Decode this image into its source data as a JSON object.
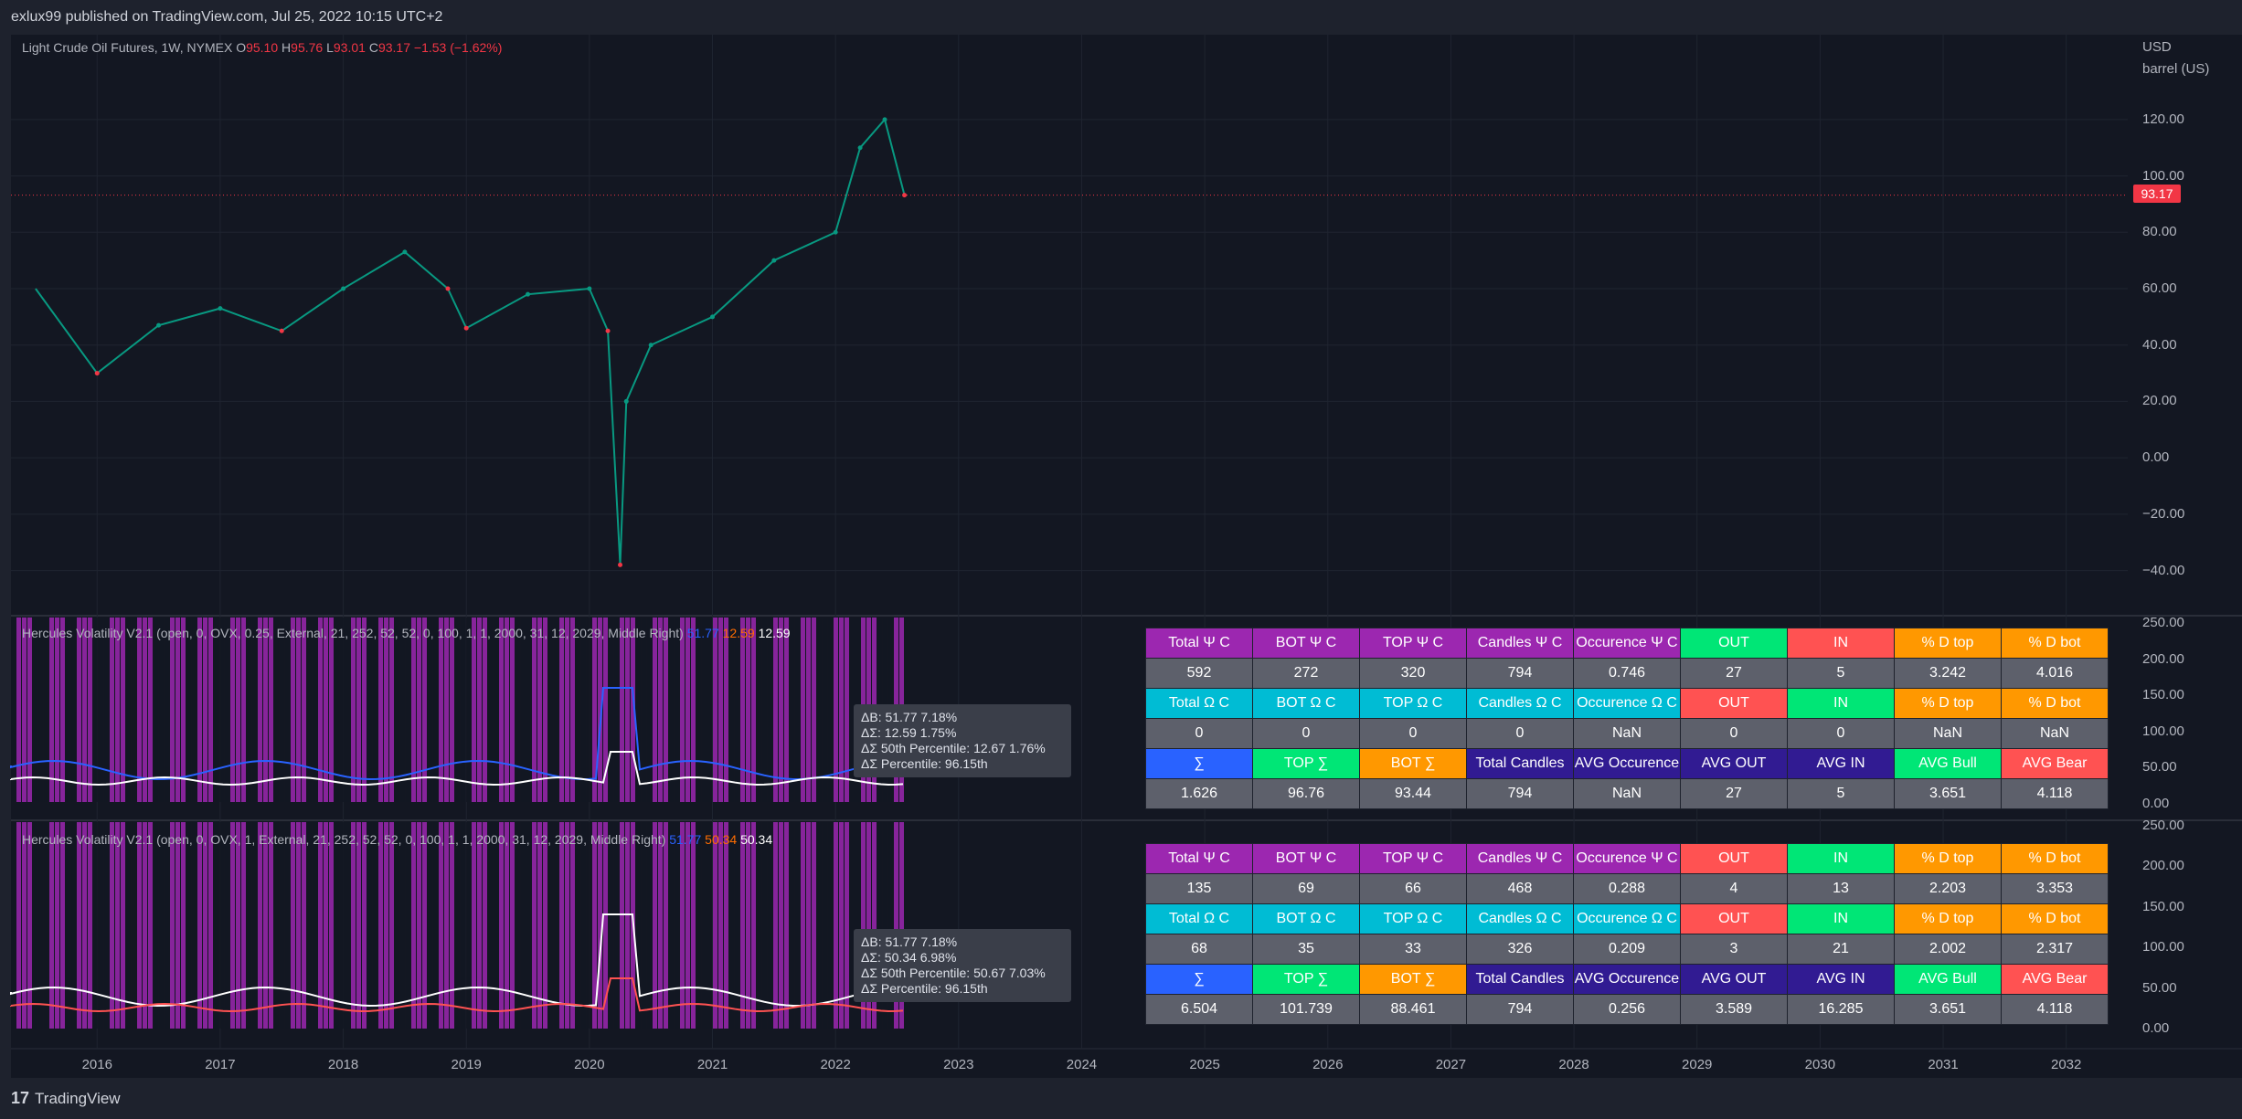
{
  "header": {
    "published": "exlux99 published on TradingView.com, Jul 25, 2022 10:15 UTC+2"
  },
  "footer": {
    "brand": "TradingView",
    "logo_icon": "tradingview-logo-icon"
  },
  "main_legend": {
    "symbol": "Light Crude Oil Futures, 1W, NYMEX",
    "o_label": "O",
    "o": "95.10",
    "h_label": "H",
    "h": "95.76",
    "l_label": "L",
    "l": "93.01",
    "c_label": "C",
    "c": "93.17",
    "change": "−1.53 (−1.62%)"
  },
  "price_axis": {
    "currency": "USD",
    "unit": "barrel (US)",
    "ticks": [
      "120.00",
      "100.00",
      "80.00",
      "60.00",
      "40.00",
      "20.00",
      "0.00",
      "−20.00",
      "−40.00"
    ],
    "last_price": "93.17"
  },
  "indicator1": {
    "title": "Hercules Volatility V2.1 (open, 0, OVX, 0.25, External, 21, 252, 52, 52, 0, 100, 1, 1, 2000, 31, 12, 2029, Middle Right)",
    "v1": "51.77",
    "v2": "12.59",
    "v3": "12.59",
    "ticks": [
      "250.00",
      "200.00",
      "150.00",
      "100.00",
      "50.00",
      "0.00"
    ],
    "tooltip": [
      "ΔB: 51.77  7.18%",
      "ΔΣ: 12.59  1.75%",
      "ΔΣ 50th Percentile: 12.67  1.76%",
      "ΔΣ Percentile: 96.15th"
    ]
  },
  "indicator2": {
    "title": "Hercules Volatility V2.1 (open, 0, OVX, 1, External, 21, 252, 52, 52, 0, 100, 1, 1, 2000, 31, 12, 2029, Middle Right)",
    "v1": "51.77",
    "v2": "50.34",
    "v3": "50.34",
    "ticks": [
      "250.00",
      "200.00",
      "150.00",
      "100.00",
      "50.00",
      "0.00"
    ],
    "tooltip": [
      "ΔB: 51.77  7.18%",
      "ΔΣ: 50.34  6.98%",
      "ΔΣ 50th Percentile: 50.67  7.03%",
      "ΔΣ Percentile: 96.15th"
    ]
  },
  "time_axis": [
    "2016",
    "2017",
    "2018",
    "2019",
    "2020",
    "2021",
    "2022",
    "2023",
    "2024",
    "2025",
    "2026",
    "2027",
    "2028",
    "2029",
    "2030",
    "2031",
    "2032"
  ],
  "table1": {
    "rows": [
      [
        "Total Ψ C",
        "BOT Ψ C",
        "TOP Ψ C",
        "Candles Ψ C",
        "Occurence Ψ C",
        "OUT",
        "IN",
        "% D top",
        "% D bot"
      ],
      [
        "592",
        "272",
        "320",
        "794",
        "0.746",
        "27",
        "5",
        "3.242",
        "4.016"
      ],
      [
        "Total Ω C",
        "BOT Ω C",
        "TOP Ω C",
        "Candles Ω C",
        "Occurence Ω C",
        "OUT",
        "IN",
        "% D top",
        "% D bot"
      ],
      [
        "0",
        "0",
        "0",
        "0",
        "NaN",
        "0",
        "0",
        "NaN",
        "NaN"
      ],
      [
        "∑",
        "TOP ∑",
        "BOT ∑",
        "Total Candles",
        "AVG Occurence",
        "AVG OUT",
        "AVG IN",
        "AVG Bull",
        "AVG Bear"
      ],
      [
        "1.626",
        "96.76",
        "93.44",
        "794",
        "NaN",
        "27",
        "5",
        "3.651",
        "4.118"
      ]
    ],
    "colors": [
      [
        "#9c27b0",
        "#9c27b0",
        "#9c27b0",
        "#9c27b0",
        "#9c27b0",
        "#00e676",
        "#ff5252",
        "#ff9800",
        "#ff9800"
      ],
      [
        "#5d606b",
        "#5d606b",
        "#5d606b",
        "#5d606b",
        "#5d606b",
        "#5d606b",
        "#5d606b",
        "#5d606b",
        "#5d606b"
      ],
      [
        "#00bcd4",
        "#00bcd4",
        "#00bcd4",
        "#00bcd4",
        "#00bcd4",
        "#ff5252",
        "#00e676",
        "#ff9800",
        "#ff9800"
      ],
      [
        "#5d606b",
        "#5d606b",
        "#5d606b",
        "#5d606b",
        "#5d606b",
        "#5d606b",
        "#5d606b",
        "#5d606b",
        "#5d606b"
      ],
      [
        "#2962ff",
        "#00e676",
        "#ff9800",
        "#311b92",
        "#311b92",
        "#311b92",
        "#311b92",
        "#00e676",
        "#ff5252"
      ],
      [
        "#5d606b",
        "#5d606b",
        "#5d606b",
        "#5d606b",
        "#5d606b",
        "#5d606b",
        "#5d606b",
        "#5d606b",
        "#5d606b"
      ]
    ]
  },
  "table2": {
    "rows": [
      [
        "Total Ψ C",
        "BOT Ψ C",
        "TOP Ψ C",
        "Candles Ψ C",
        "Occurence Ψ C",
        "OUT",
        "IN",
        "% D top",
        "% D bot"
      ],
      [
        "135",
        "69",
        "66",
        "468",
        "0.288",
        "4",
        "13",
        "2.203",
        "3.353"
      ],
      [
        "Total Ω C",
        "BOT Ω C",
        "TOP Ω C",
        "Candles Ω C",
        "Occurence Ω C",
        "OUT",
        "IN",
        "% D top",
        "% D bot"
      ],
      [
        "68",
        "35",
        "33",
        "326",
        "0.209",
        "3",
        "21",
        "2.002",
        "2.317"
      ],
      [
        "∑",
        "TOP ∑",
        "BOT ∑",
        "Total Candles",
        "AVG Occurence",
        "AVG OUT",
        "AVG IN",
        "AVG Bull",
        "AVG Bear"
      ],
      [
        "6.504",
        "101.739",
        "88.461",
        "794",
        "0.256",
        "3.589",
        "16.285",
        "3.651",
        "4.118"
      ]
    ],
    "colors": [
      [
        "#9c27b0",
        "#9c27b0",
        "#9c27b0",
        "#9c27b0",
        "#9c27b0",
        "#ff5252",
        "#00e676",
        "#ff9800",
        "#ff9800"
      ],
      [
        "#5d606b",
        "#5d606b",
        "#5d606b",
        "#5d606b",
        "#5d606b",
        "#5d606b",
        "#5d606b",
        "#5d606b",
        "#5d606b"
      ],
      [
        "#00bcd4",
        "#00bcd4",
        "#00bcd4",
        "#00bcd4",
        "#00bcd4",
        "#ff5252",
        "#00e676",
        "#ff9800",
        "#ff9800"
      ],
      [
        "#5d606b",
        "#5d606b",
        "#5d606b",
        "#5d606b",
        "#5d606b",
        "#5d606b",
        "#5d606b",
        "#5d606b",
        "#5d606b"
      ],
      [
        "#2962ff",
        "#00e676",
        "#ff9800",
        "#311b92",
        "#311b92",
        "#311b92",
        "#311b92",
        "#00e676",
        "#ff5252"
      ],
      [
        "#5d606b",
        "#5d606b",
        "#5d606b",
        "#5d606b",
        "#5d606b",
        "#5d606b",
        "#5d606b",
        "#5d606b",
        "#5d606b"
      ]
    ]
  },
  "chart_data": {
    "type": "line",
    "x": [
      2015.5,
      2016.0,
      2016.5,
      2017.0,
      2017.5,
      2018.0,
      2018.5,
      2018.85,
      2019.0,
      2019.5,
      2020.0,
      2020.15,
      2020.25,
      2020.3,
      2020.5,
      2021.0,
      2021.5,
      2022.0,
      2022.2,
      2022.4,
      2022.56
    ],
    "series": [
      {
        "values": [
          60,
          30,
          47,
          53,
          45,
          60,
          73,
          60,
          46,
          58,
          60,
          45,
          -38,
          20,
          40,
          50,
          70,
          80,
          110,
          120,
          93.17
        ]
      }
    ],
    "xlim": [
      2015.3,
      2032.5
    ],
    "ylim": [
      -45,
      130
    ]
  }
}
